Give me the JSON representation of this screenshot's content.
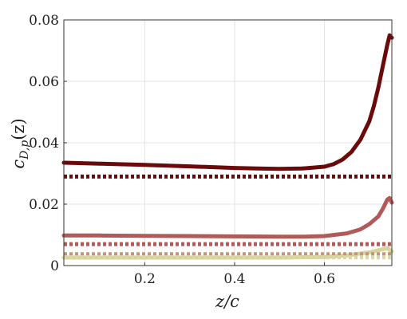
{
  "chart_data": {
    "type": "line",
    "xlabel": "z/c",
    "ylabel": "c_{D,p}(z)",
    "ylabel_parts": {
      "base": "c",
      "sub": "D,p",
      "arg": "(z)"
    },
    "xlim": [
      0.02,
      0.75
    ],
    "ylim": [
      0,
      0.08
    ],
    "xticks": [
      0.2,
      0.4,
      0.6
    ],
    "yticks": [
      0,
      0.02,
      0.04,
      0.06,
      0.08
    ],
    "xtick_labels": [
      "0.2",
      "0.4",
      "0.6"
    ],
    "ytick_labels": [
      "0",
      "0.02",
      "0.04",
      "0.06",
      "0.08"
    ],
    "grid": true,
    "series": [
      {
        "style": "solid",
        "color": "#6b0a0a",
        "x": [
          0.02,
          0.1,
          0.2,
          0.3,
          0.4,
          0.45,
          0.5,
          0.55,
          0.6,
          0.62,
          0.64,
          0.66,
          0.68,
          0.7,
          0.71,
          0.72,
          0.73,
          0.74,
          0.745,
          0.75
        ],
        "y": [
          0.0335,
          0.0332,
          0.0328,
          0.0323,
          0.0318,
          0.0316,
          0.0315,
          0.0316,
          0.0322,
          0.033,
          0.0345,
          0.037,
          0.041,
          0.047,
          0.052,
          0.058,
          0.065,
          0.072,
          0.075,
          0.0742
        ]
      },
      {
        "style": "dotted",
        "color": "#6b0a0a",
        "x": [
          0.02,
          0.75
        ],
        "y": [
          0.029,
          0.029
        ]
      },
      {
        "style": "solid",
        "color": "#b05a5a",
        "x": [
          0.02,
          0.1,
          0.2,
          0.3,
          0.4,
          0.5,
          0.55,
          0.6,
          0.65,
          0.68,
          0.7,
          0.72,
          0.73,
          0.74,
          0.745,
          0.75
        ],
        "y": [
          0.0098,
          0.0098,
          0.0097,
          0.0096,
          0.0095,
          0.0094,
          0.0094,
          0.0096,
          0.0105,
          0.0118,
          0.0135,
          0.016,
          0.0185,
          0.0215,
          0.022,
          0.0205
        ]
      },
      {
        "style": "dotted",
        "color": "#b05a5a",
        "x": [
          0.02,
          0.75
        ],
        "y": [
          0.007,
          0.007
        ]
      },
      {
        "style": "solid",
        "color": "#d6d49a",
        "x": [
          0.02,
          0.2,
          0.4,
          0.5,
          0.6,
          0.65,
          0.7,
          0.72,
          0.74,
          0.75
        ],
        "y": [
          0.0026,
          0.0026,
          0.0026,
          0.0026,
          0.0028,
          0.0033,
          0.0043,
          0.005,
          0.0057,
          0.0046
        ]
      },
      {
        "style": "dotted",
        "color": "#c2967e",
        "x": [
          0.02,
          0.75
        ],
        "y": [
          0.0037,
          0.0037
        ]
      },
      {
        "style": "dotted",
        "color": "#dbd7a8",
        "x": [
          0.02,
          0.75
        ],
        "y": [
          0.0027,
          0.0027
        ]
      }
    ]
  }
}
